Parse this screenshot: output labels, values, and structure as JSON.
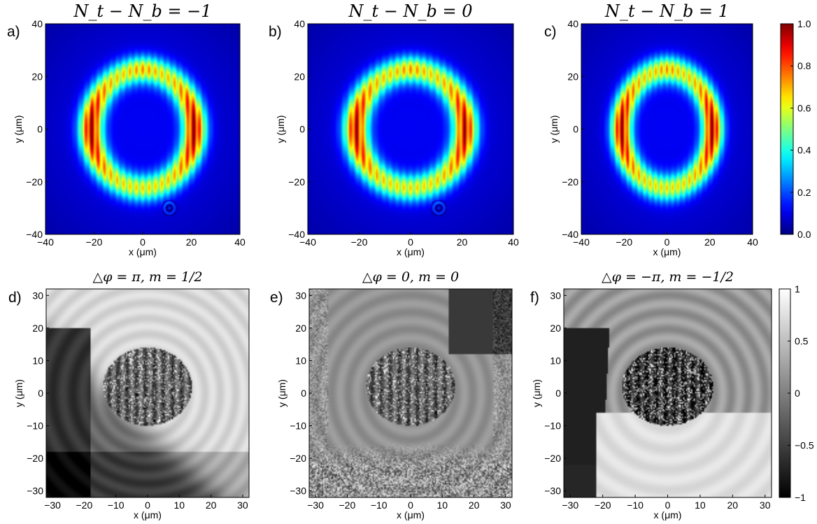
{
  "figure": {
    "panels": [
      {
        "label": "a)",
        "title": "N_t − N_b = −1",
        "xlabel": "x (μm)",
        "ylabel": "y (μm)",
        "type": "intensity",
        "variant": "a"
      },
      {
        "label": "b)",
        "title": "N_t − N_b = 0",
        "xlabel": "x (μm)",
        "ylabel": "y (μm)",
        "type": "intensity",
        "variant": "b"
      },
      {
        "label": "c)",
        "title": "N_t − N_b = 1",
        "xlabel": "x (μm)",
        "ylabel": "y (μm)",
        "type": "intensity",
        "variant": "c"
      },
      {
        "label": "d)",
        "title": "△φ = π, m = 1/2",
        "xlabel": "x (μm)",
        "ylabel": "y (μm)",
        "type": "phase",
        "variant": "d"
      },
      {
        "label": "e)",
        "title": "△φ = 0, m = 0",
        "xlabel": "x (μm)",
        "ylabel": "y (μm)",
        "type": "phase",
        "variant": "e"
      },
      {
        "label": "f)",
        "title": "△φ = −π, m = −1/2",
        "xlabel": "x (μm)",
        "ylabel": "y (μm)",
        "type": "phase",
        "variant": "f"
      }
    ],
    "colorbars": [
      {
        "colormap": "jet",
        "range": [
          0,
          1
        ],
        "ticks": [
          "0.0",
          "0.2",
          "0.4",
          "0.6",
          "0.8",
          "1.0"
        ]
      },
      {
        "colormap": "gray",
        "range": [
          -1,
          1
        ],
        "ticks": [
          "−1",
          "−0.5",
          "0",
          "0.5",
          "1"
        ]
      }
    ]
  },
  "chart_data": [
    {
      "type": "heatmap",
      "title": "N_t − N_b = −1",
      "xlabel": "x (μm)",
      "ylabel": "y (μm)",
      "xlim": [
        -40,
        40
      ],
      "ylim": [
        -40,
        40
      ],
      "xticks": [
        -40,
        -20,
        0,
        20,
        40
      ],
      "yticks": [
        -40,
        -20,
        0,
        20,
        40
      ],
      "colormap": "jet",
      "clim": [
        0,
        1
      ],
      "ring": {
        "center": [
          0,
          0
        ],
        "inner_radius": 16,
        "outer_radius": 27,
        "peak": 1.0,
        "max_at": [
          [
            -23,
            2
          ],
          [
            23,
            2
          ]
        ]
      }
    },
    {
      "type": "heatmap",
      "title": "N_t − N_b = 0",
      "xlabel": "x (μm)",
      "ylabel": "y (μm)",
      "xlim": [
        -40,
        40
      ],
      "ylim": [
        -40,
        40
      ],
      "xticks": [
        -40,
        -20,
        0,
        20,
        40
      ],
      "yticks": [
        -40,
        -20,
        0,
        20,
        40
      ],
      "colormap": "jet",
      "clim": [
        0,
        1
      ],
      "ring": {
        "center": [
          0,
          0
        ],
        "inner_radius": 16,
        "outer_radius": 27,
        "peak": 0.9,
        "max_at": [
          [
            -21,
            2
          ],
          [
            21,
            2
          ]
        ]
      }
    },
    {
      "type": "heatmap",
      "title": "N_t − N_b = 1",
      "xlabel": "x (μm)",
      "ylabel": "y (μm)",
      "xlim": [
        -40,
        40
      ],
      "ylim": [
        -40,
        40
      ],
      "xticks": [
        -40,
        -20,
        0,
        20,
        40
      ],
      "yticks": [
        -40,
        -20,
        0,
        20,
        40
      ],
      "colormap": "jet",
      "clim": [
        0,
        1
      ],
      "ring": {
        "center": [
          0,
          0
        ],
        "inner_radius": 16,
        "outer_radius": 27,
        "peak": 1.0,
        "max_at": [
          [
            -21,
            2
          ],
          [
            21,
            2
          ]
        ]
      }
    },
    {
      "type": "heatmap",
      "title": "△φ = π, m = 1/2",
      "xlabel": "x (μm)",
      "ylabel": "y (μm)",
      "xlim": [
        -32,
        32
      ],
      "ylim": [
        -32,
        32
      ],
      "xticks": [
        -30,
        -20,
        -10,
        0,
        10,
        20,
        30
      ],
      "yticks": [
        -30,
        -20,
        -10,
        0,
        10,
        20,
        30
      ],
      "colormap": "gray",
      "clim": [
        -1,
        1
      ]
    },
    {
      "type": "heatmap",
      "title": "△φ = 0, m = 0",
      "xlabel": "x (μm)",
      "ylabel": "y (μm)",
      "xlim": [
        -32,
        32
      ],
      "ylim": [
        -32,
        32
      ],
      "xticks": [
        -30,
        -20,
        -10,
        0,
        10,
        20,
        30
      ],
      "yticks": [
        -30,
        -20,
        -10,
        0,
        10,
        20,
        30
      ],
      "colormap": "gray",
      "clim": [
        -1,
        1
      ]
    },
    {
      "type": "heatmap",
      "title": "△φ = −π, m = −1/2",
      "xlabel": "x (μm)",
      "ylabel": "y (μm)",
      "xlim": [
        -32,
        32
      ],
      "ylim": [
        -32,
        32
      ],
      "xticks": [
        -30,
        -20,
        -10,
        0,
        10,
        20,
        30
      ],
      "yticks": [
        -30,
        -20,
        -10,
        0,
        10,
        20,
        30
      ],
      "colormap": "gray",
      "clim": [
        -1,
        1
      ]
    }
  ]
}
